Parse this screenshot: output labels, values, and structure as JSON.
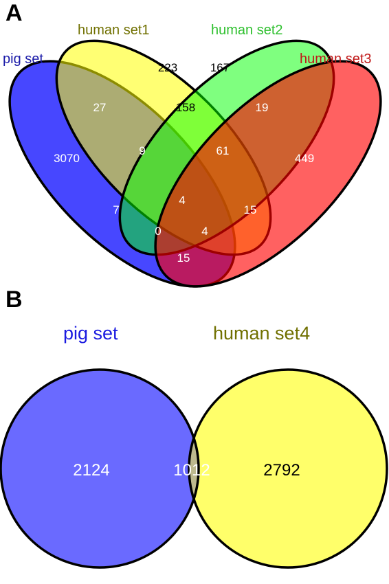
{
  "panels": {
    "a": {
      "letter": "A",
      "sets": {
        "pig": {
          "label": "pig set",
          "color": "#0000ff",
          "label_color": "#1a1aa8"
        },
        "human1": {
          "label": "human set1",
          "color": "#ffff00",
          "label_color": "#707000"
        },
        "human2": {
          "label": "human set2",
          "color": "#00ff00",
          "label_color": "#2fc02f"
        },
        "human3": {
          "label": "human set3",
          "color": "#ff0000",
          "label_color": "#c01818"
        }
      },
      "counts": {
        "pig_only": "3070",
        "h1_only": "223",
        "h2_only": "167",
        "h3_only": "449",
        "pig_h1": "27",
        "h1_h2": "158",
        "h2_h3": "19",
        "pig_h1_h2": "9",
        "h1_h2_h3": "61",
        "pig_h2": "7",
        "all_four": "4",
        "h1_h3": "15",
        "pig_h2_h3": "0",
        "pig_h1_h3": "4",
        "pig_h3": "15"
      }
    },
    "b": {
      "letter": "B",
      "sets": {
        "pig": {
          "label": "pig set",
          "color": "#6a6aff",
          "label_color": "#1a1ae0"
        },
        "human4": {
          "label": "human set4",
          "color": "#ffff6a",
          "label_color": "#707000"
        }
      },
      "counts": {
        "pig_only": "2124",
        "both": "1012",
        "human4_only": "2792"
      }
    }
  }
}
